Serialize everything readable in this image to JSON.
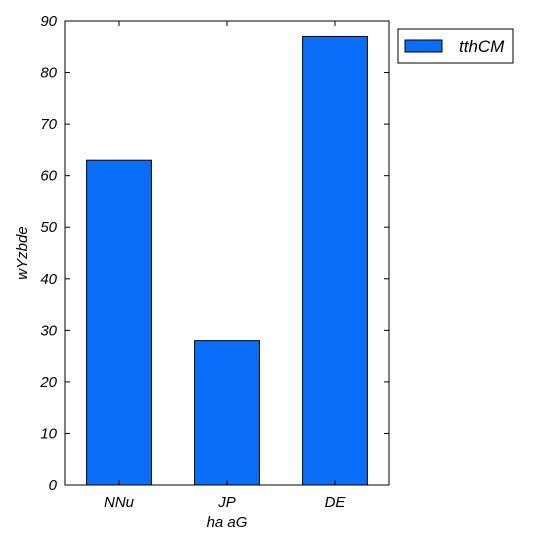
{
  "chart_data": {
    "type": "bar",
    "categories": [
      "NNu",
      "JP",
      "DE"
    ],
    "series": [
      {
        "name": "tthCM",
        "values": [
          63,
          28,
          87
        ],
        "color": "#0a6ef9"
      }
    ],
    "xlabel": "ha aG",
    "ylabel": "wYzbde",
    "ylim": [
      0,
      90
    ],
    "yticks": [
      0,
      10,
      20,
      30,
      40,
      50,
      60,
      70,
      80,
      90
    ],
    "grid": false,
    "legend_position": "outside-top-right"
  }
}
